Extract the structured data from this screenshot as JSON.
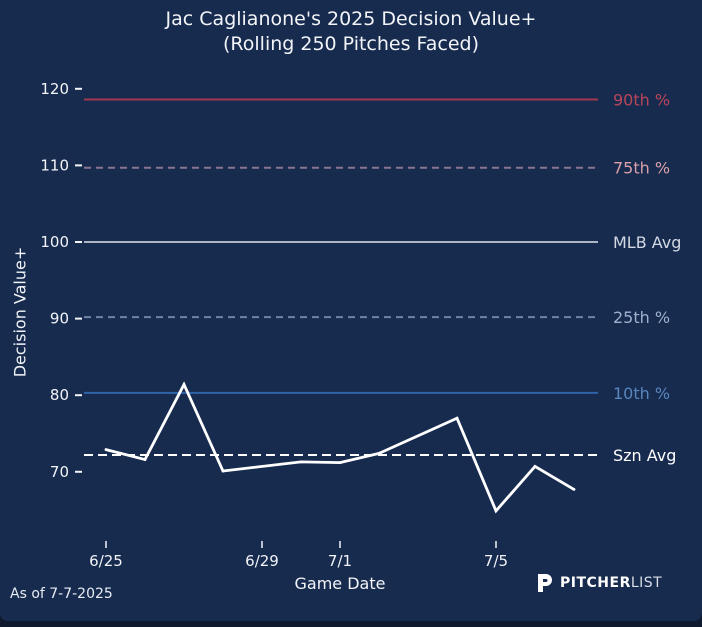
{
  "chart_data": {
    "type": "line",
    "title": "Jac Caglianone's 2025 Decision Value+",
    "subtitle": "(Rolling 250 Pitches Faced)",
    "xlabel": "Game Date",
    "ylabel": "Decision Value+",
    "ylim": [
      62.5,
      121
    ],
    "yticks": [
      70,
      80,
      90,
      100,
      110,
      120
    ],
    "xticks": [
      {
        "label": "6/25",
        "day": 0
      },
      {
        "label": "6/29",
        "day": 4
      },
      {
        "label": "7/1",
        "day": 6
      },
      {
        "label": "7/5",
        "day": 10
      }
    ],
    "xlim_days": [
      -0.6,
      12.5
    ],
    "grid": false,
    "series": [
      {
        "name": "Rolling Decision Value+",
        "color": "#ffffff",
        "points": [
          {
            "date": "6/25",
            "day": 0,
            "value": 72.9
          },
          {
            "date": "6/26",
            "day": 1,
            "value": 71.6
          },
          {
            "date": "6/27",
            "day": 2,
            "value": 81.4
          },
          {
            "date": "6/28",
            "day": 3,
            "value": 70.1
          },
          {
            "date": "6/30",
            "day": 5,
            "value": 71.3
          },
          {
            "date": "7/1",
            "day": 6,
            "value": 71.2
          },
          {
            "date": "7/2",
            "day": 7,
            "value": 72.4
          },
          {
            "date": "7/4",
            "day": 9,
            "value": 77.0
          },
          {
            "date": "7/5",
            "day": 10,
            "value": 64.9
          },
          {
            "date": "7/6",
            "day": 11,
            "value": 70.7
          },
          {
            "date": "7/7",
            "day": 12,
            "value": 67.7
          }
        ]
      }
    ],
    "reference_lines": [
      {
        "name": "90th %",
        "value": 118.6,
        "color": "#a0384f",
        "label_color": "#b9455a",
        "style": "solid"
      },
      {
        "name": "75th %",
        "value": 109.7,
        "color": "#8a7590",
        "label_color": "#d8a0a8",
        "style": "dashed"
      },
      {
        "name": "MLB Avg",
        "value": 100.0,
        "color": "#aeb6c6",
        "label_color": "#d3d8e2",
        "style": "solid"
      },
      {
        "name": "25th %",
        "value": 90.2,
        "color": "#6f84a8",
        "label_color": "#9fb0cc",
        "style": "dashed"
      },
      {
        "name": "10th %",
        "value": 80.3,
        "color": "#2f63a8",
        "label_color": "#5a86be",
        "style": "solid"
      },
      {
        "name": "Szn Avg",
        "value": 72.2,
        "color": "#ffffff",
        "label_color": "#ffffff",
        "style": "dashed"
      }
    ]
  },
  "footer": {
    "as_of": "As of 7-7-2025",
    "brand_bold": "PITCHER",
    "brand_light": "LIST"
  }
}
